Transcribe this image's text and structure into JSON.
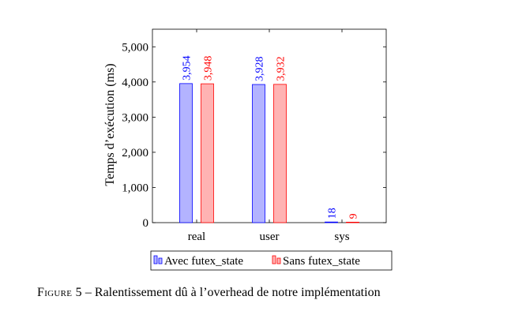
{
  "chart_data": {
    "type": "bar",
    "categories": [
      "real",
      "user",
      "sys"
    ],
    "series": [
      {
        "name": "Avec futex_state",
        "values": [
          3954,
          3928,
          18
        ],
        "labels": [
          "3,954",
          "3,928",
          "18"
        ],
        "color": "#0000ff",
        "fill": "#b3b3ff"
      },
      {
        "name": "Sans futex_state",
        "values": [
          3948,
          3932,
          9
        ],
        "labels": [
          "3,948",
          "3,932",
          "9"
        ],
        "color": "#ff0000",
        "fill": "#ffb3b3"
      }
    ],
    "title": "",
    "xlabel": "",
    "ylabel": "Temps d’exécution (ms)",
    "ylim": [
      0,
      5500
    ],
    "yticks": [
      0,
      1000,
      2000,
      3000,
      4000,
      5000
    ],
    "ytick_labels": [
      "0",
      "1,000",
      "2,000",
      "3,000",
      "4,000",
      "5,000"
    ],
    "grid": false,
    "legend_placement": "bottom-center"
  },
  "caption": {
    "figure_tag": "Figure 5",
    "separator": " – ",
    "text": "Ralentissement dû à l’overhead de notre implémentation"
  }
}
